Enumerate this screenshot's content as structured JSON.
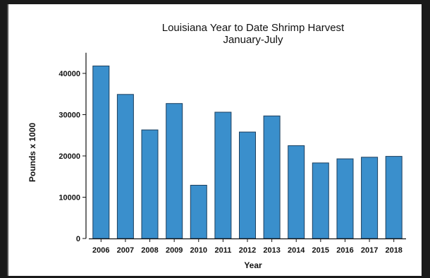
{
  "chart_data": {
    "type": "bar",
    "title": "Louisiana Year to Date Shrimp Harvest",
    "subtitle": "January-July",
    "xlabel": "Year",
    "ylabel": "Pounds x 1000",
    "categories": [
      "2006",
      "2007",
      "2008",
      "2009",
      "2010",
      "2011",
      "2012",
      "2013",
      "2014",
      "2015",
      "2016",
      "2017",
      "2018"
    ],
    "values": [
      41800,
      34900,
      26300,
      32700,
      12900,
      30600,
      25800,
      29700,
      22500,
      18300,
      19300,
      19700,
      19900
    ],
    "ylim": [
      0,
      45000
    ],
    "yticks": [
      0,
      10000,
      20000,
      30000,
      40000
    ],
    "grid": false,
    "bar_color": "#3a8fcc",
    "bar_edge_color": "#1c3f5e"
  }
}
